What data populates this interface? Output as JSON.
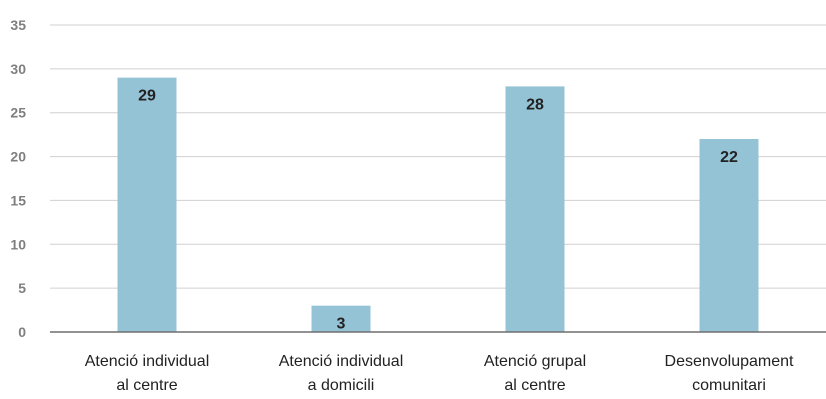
{
  "chart_data": {
    "type": "bar",
    "categories": [
      [
        "Atenció individual",
        "al centre"
      ],
      [
        "Atenció individual",
        "a domicili"
      ],
      [
        "Atenció grupal",
        "al centre"
      ],
      [
        "Desenvolupament",
        "comunitari"
      ]
    ],
    "values": [
      29,
      3,
      28,
      22
    ],
    "data_labels": [
      "29",
      "3",
      "28",
      "22"
    ],
    "y_ticks": [
      0,
      5,
      10,
      15,
      20,
      25,
      30,
      35
    ],
    "ylim": [
      0,
      35
    ],
    "grid": true,
    "legend": "none",
    "title": "",
    "xlabel": "",
    "ylabel": "",
    "colors": {
      "bar": "#94c3d6",
      "grid": "#d0d0d0",
      "axis": "#6f6f6f",
      "tick_text": "#7f7f7f",
      "label_text": "#222222"
    }
  }
}
